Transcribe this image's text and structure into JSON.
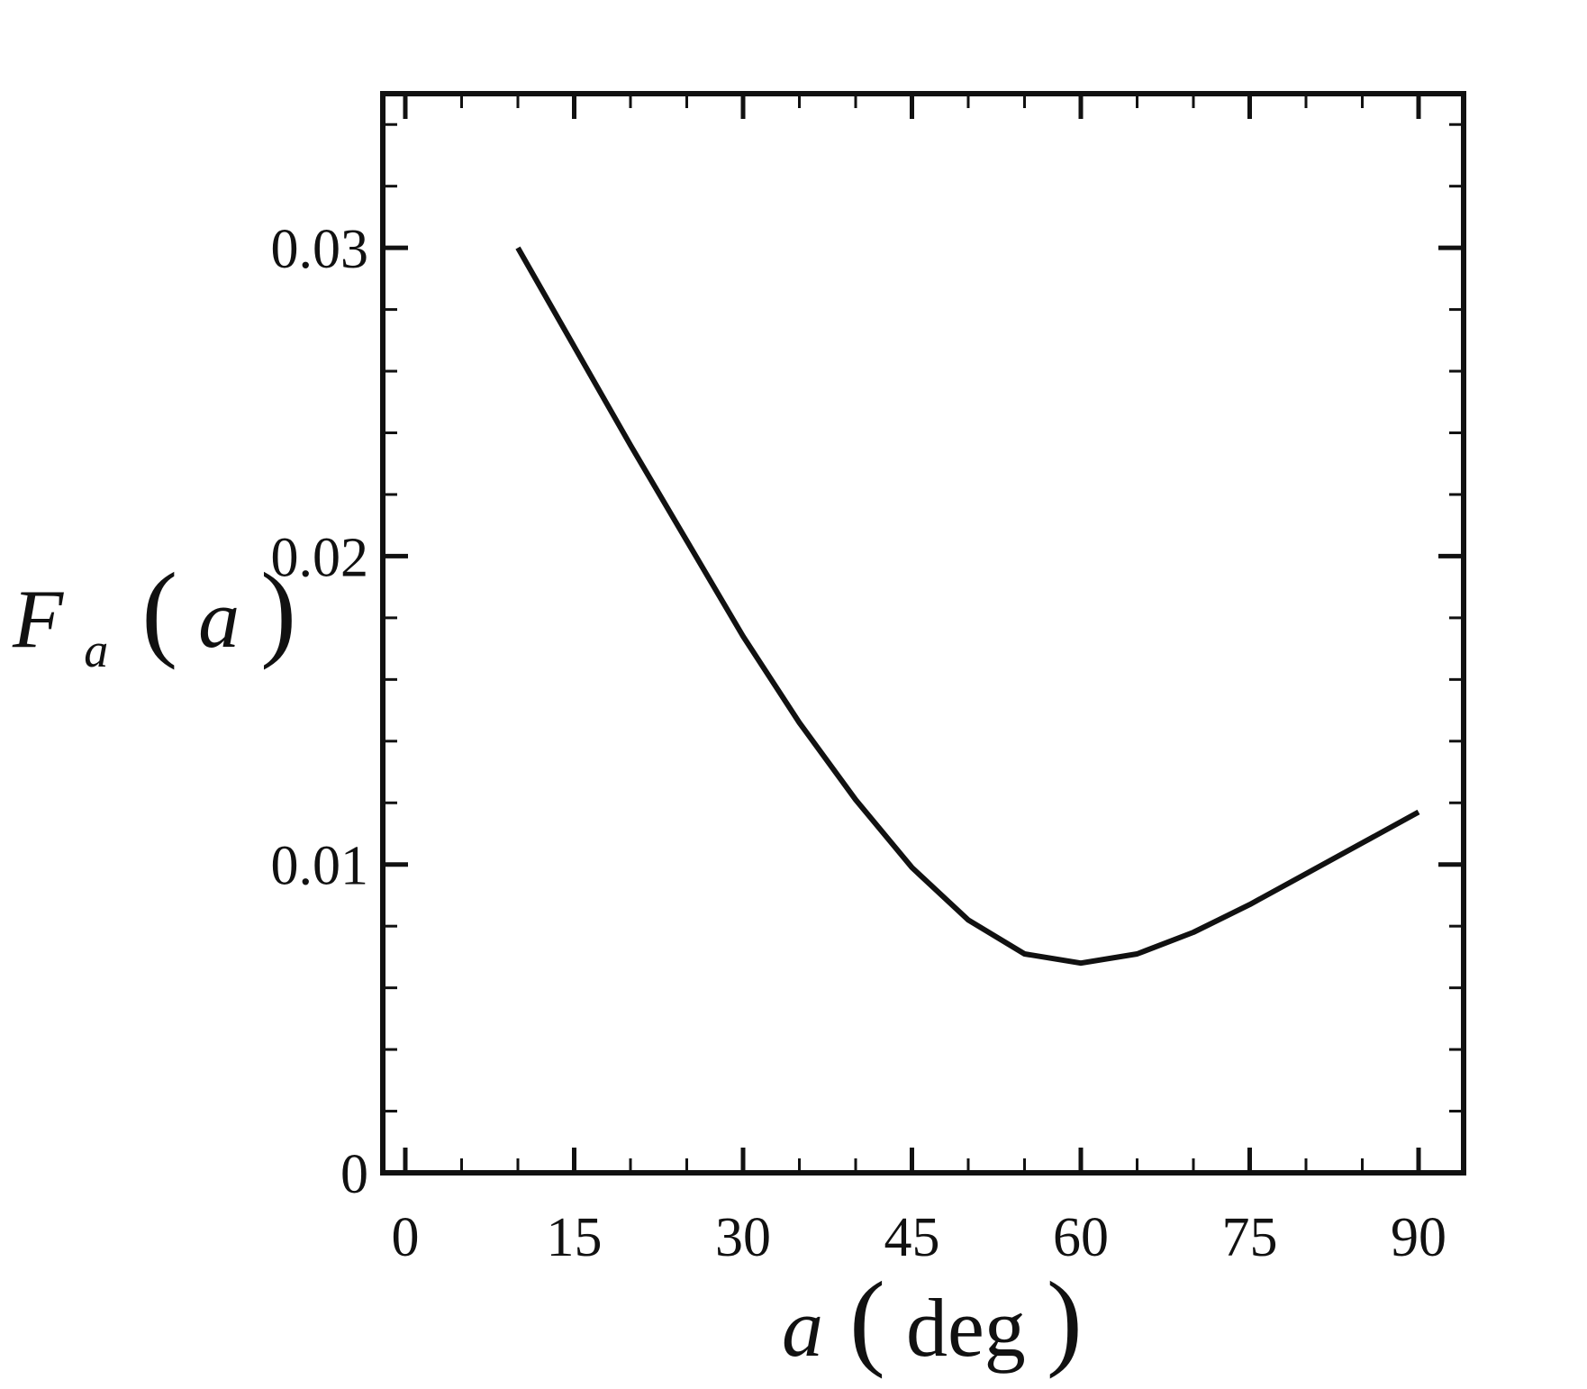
{
  "chart_data": {
    "type": "line",
    "xlabel": "a(deg)",
    "ylabel": "F_a(a)",
    "xlabel_parts": {
      "var": "a",
      "unit": "deg"
    },
    "ylabel_parts": {
      "base": "F",
      "sub": "a",
      "arg": "a"
    },
    "xlim": [
      -2,
      94
    ],
    "ylim": [
      0,
      0.035
    ],
    "x_ticks": [
      0,
      15,
      30,
      45,
      60,
      75,
      90
    ],
    "x_tick_labels": [
      "0",
      "15",
      "30",
      "45",
      "60",
      "75",
      "90"
    ],
    "y_ticks": [
      0,
      0.01,
      0.02,
      0.03
    ],
    "y_tick_labels": [
      "0",
      "0.01",
      "0.02",
      "0.03"
    ],
    "grid": false,
    "series": [
      {
        "x": [
          10,
          15,
          20,
          25,
          30,
          35,
          40,
          45,
          50,
          55,
          60,
          65,
          70,
          75,
          80,
          85,
          90
        ],
        "y": [
          0.03,
          0.0268,
          0.0236,
          0.0205,
          0.0174,
          0.0146,
          0.0121,
          0.0099,
          0.0082,
          0.0071,
          0.0068,
          0.0071,
          0.0078,
          0.0087,
          0.0097,
          0.0107,
          0.0117
        ]
      }
    ],
    "colors": {
      "line": "#111111",
      "frame": "#111111"
    }
  }
}
